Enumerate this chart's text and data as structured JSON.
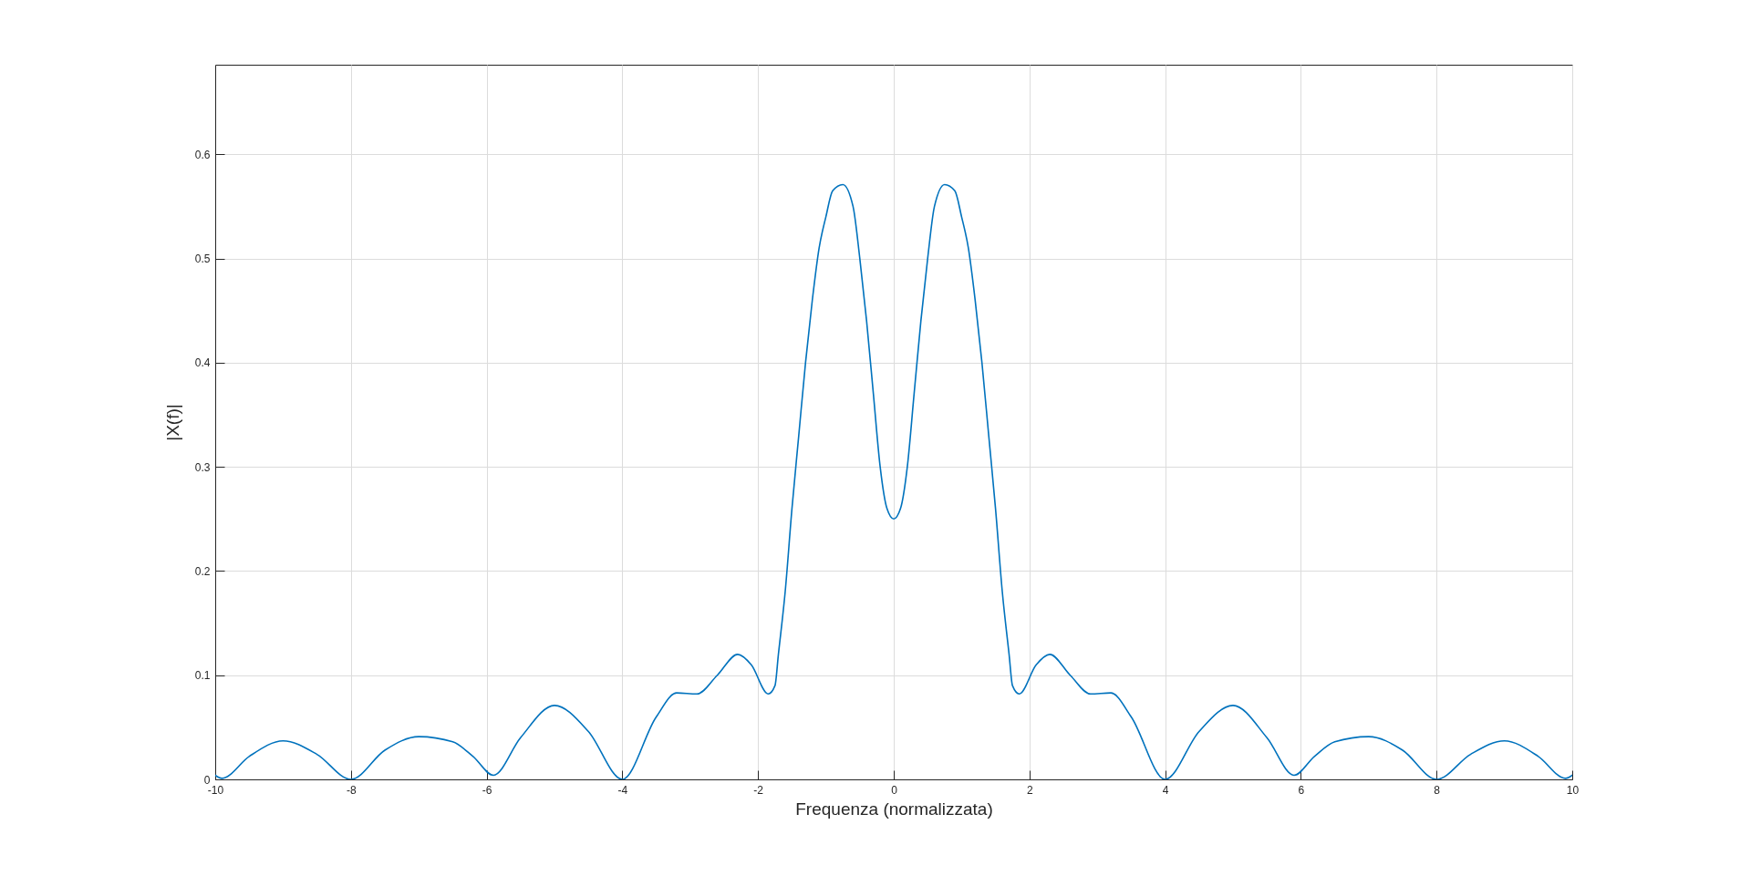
{
  "chart_data": {
    "type": "line",
    "xlabel": "Frequenza (normalizzata)",
    "ylabel": "|X(f)|",
    "x": [
      -10,
      -9.9,
      -9.5,
      -9,
      -8.5,
      -8,
      -7.5,
      -7,
      -6.5,
      -6.2,
      -5.9,
      -5.5,
      -5,
      -4.5,
      -4,
      -3.5,
      -3.2,
      -2.9,
      -2.6,
      -2.3,
      -2.1,
      -1.85,
      -1.75,
      -1.7,
      -1.6,
      -1.5,
      -1.4,
      -1.3,
      -1.2,
      -1.1,
      -1,
      -0.9,
      -0.75,
      -0.6,
      -0.5,
      -0.4,
      -0.3,
      -0.2,
      -0.1,
      0,
      0.1,
      0.2,
      0.3,
      0.4,
      0.5,
      0.6,
      0.75,
      0.9,
      1,
      1.1,
      1.2,
      1.3,
      1.4,
      1.5,
      1.6,
      1.7,
      1.75,
      1.85,
      2.1,
      2.3,
      2.6,
      2.9,
      3.2,
      3.5,
      4,
      4.5,
      5,
      5.5,
      5.9,
      6.2,
      6.5,
      7,
      7.5,
      8,
      8.5,
      9,
      9.5,
      9.9,
      10
    ],
    "series": [
      {
        "color": "#0072bd",
        "values": [
          0.004,
          0.001,
          0.022,
          0.037,
          0.024,
          0.0,
          0.028,
          0.041,
          0.036,
          0.022,
          0.004,
          0.04,
          0.071,
          0.046,
          0.0,
          0.06,
          0.083,
          0.082,
          0.1,
          0.12,
          0.11,
          0.082,
          0.09,
          0.12,
          0.18,
          0.26,
          0.33,
          0.4,
          0.46,
          0.51,
          0.54,
          0.565,
          0.571,
          0.55,
          0.5,
          0.44,
          0.37,
          0.3,
          0.26,
          0.25,
          0.26,
          0.3,
          0.37,
          0.44,
          0.5,
          0.55,
          0.571,
          0.565,
          0.54,
          0.51,
          0.46,
          0.4,
          0.33,
          0.26,
          0.18,
          0.12,
          0.09,
          0.082,
          0.11,
          0.12,
          0.1,
          0.082,
          0.083,
          0.06,
          0.0,
          0.046,
          0.071,
          0.04,
          0.004,
          0.022,
          0.036,
          0.041,
          0.028,
          0.0,
          0.024,
          0.037,
          0.022,
          0.001,
          0.004
        ]
      }
    ],
    "xlim": [
      -10,
      10
    ],
    "xticks": [
      -10,
      -8,
      -6,
      -4,
      -2,
      0,
      2,
      4,
      6,
      8,
      10
    ],
    "ylim": [
      0,
      0.686
    ],
    "yticks": [
      0,
      0.1,
      0.2,
      0.3,
      0.4,
      0.5,
      0.6
    ],
    "grid": true,
    "line_style": "solid",
    "marker": "none"
  }
}
